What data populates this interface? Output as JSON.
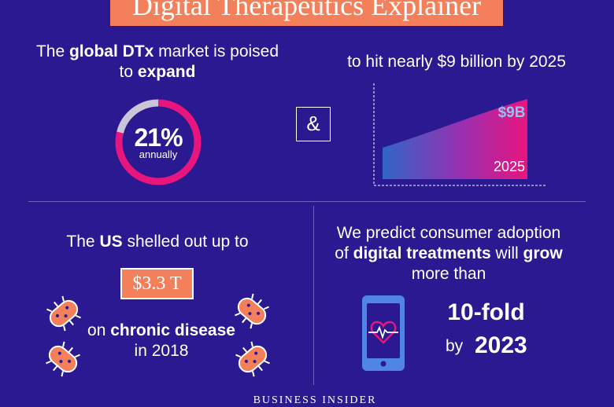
{
  "title": "Digital Therapeutics Explainer",
  "market": {
    "line1_pre": "The ",
    "line1_bold": "global DTx",
    "line1_post": " market is poised",
    "line2_pre": "to ",
    "line2_bold": "expand",
    "ring_value": "21%",
    "ring_label": "annually",
    "ring_fraction": 0.21
  },
  "connector": "&",
  "forecast": {
    "headline": "to hit nearly $9 billion by 2025",
    "value_label": "$9B",
    "year_label": "2025"
  },
  "us_spend": {
    "line_pre": "The ",
    "line_bold": "US",
    "line_post": " shelled out up to",
    "amount": "$3.3 T",
    "line2_pre": "on ",
    "line2_bold": "chronic disease",
    "line3": "in 2018"
  },
  "adoption": {
    "line1": "We predict consumer adoption",
    "line2_pre": "of ",
    "line2_bold1": "digital treatments",
    "line2_mid": " will ",
    "line2_bold2": "grow",
    "line3": "more than",
    "fold": "10-fold",
    "by": "by",
    "year": "2023"
  },
  "brand": "BUSINESS INSIDER",
  "colors": {
    "background": "#2a1990",
    "accent": "#f3805a",
    "pink": "#e8157e",
    "blue": "#2f66c8",
    "light_blue": "#7fb8f0"
  },
  "icons": [
    "bacteria-icon",
    "phone-heart-icon",
    "area-chart-icon"
  ]
}
